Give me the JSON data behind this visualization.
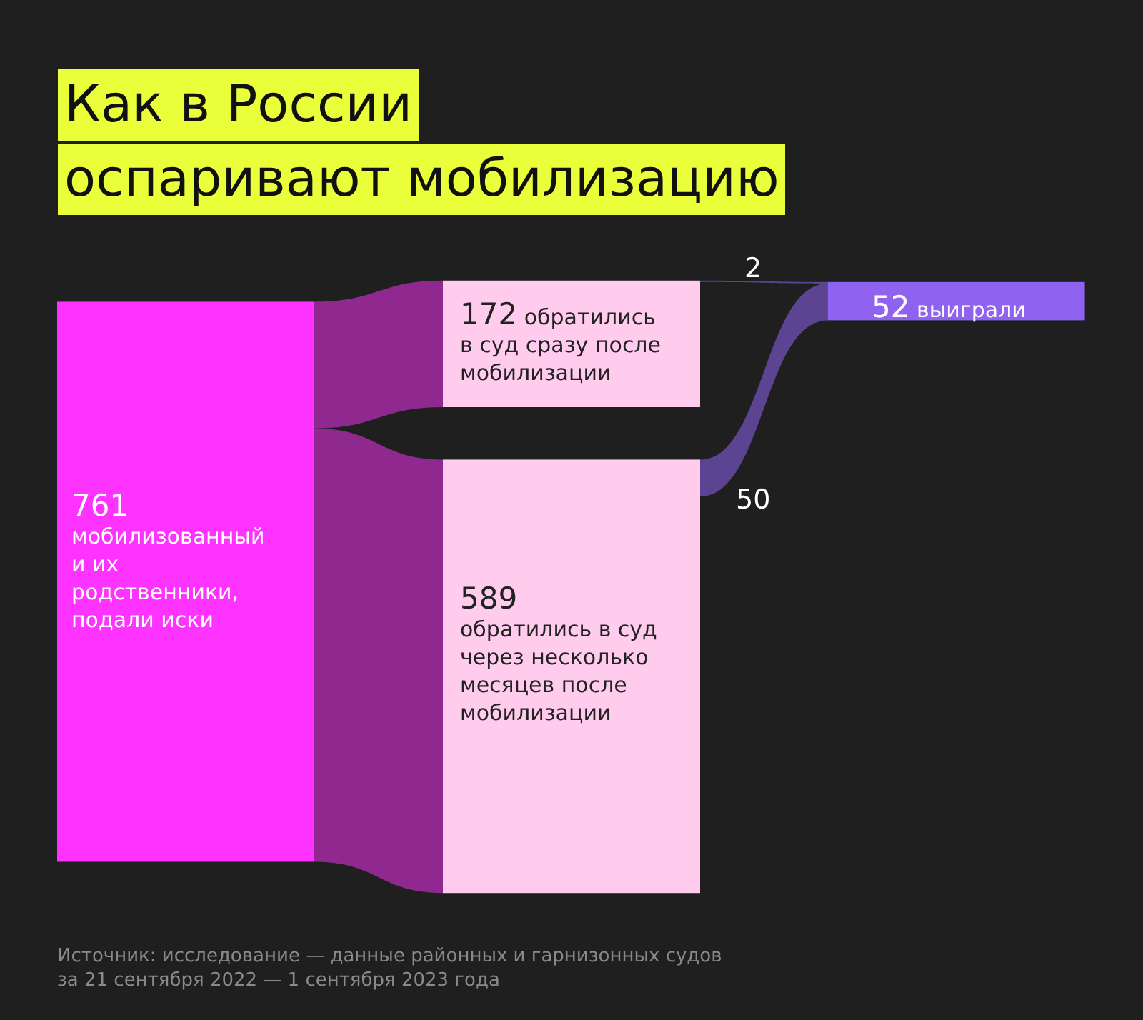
{
  "chart_data": {
    "type": "other",
    "title": "Как в России\nоспаривают мобилизацию",
    "categories": [
      "мобилизованный\nи их\nродственники,\nподали иски",
      "обратились\nв суд сразу после\nмобилизации",
      "обратились в суд\nчерез несколько\nмесяцев после\nмобилизации",
      "выиграли"
    ],
    "colors": [
      "#ff33ff",
      "#ffccee",
      "#ffccee",
      "#8f63f0"
    ],
    "values": [
      761,
      172,
      589,
      52
    ],
    "data_labels": true,
    "series": [
      {
        "values": [
          null,
          2,
          50,
          null
        ]
      }
    ],
    "annotations": [
      "Источник: исследование — данные районных и гарнизонных судов\nза 21 сентября 2022 — 1 сентября 2023 года"
    ]
  }
}
